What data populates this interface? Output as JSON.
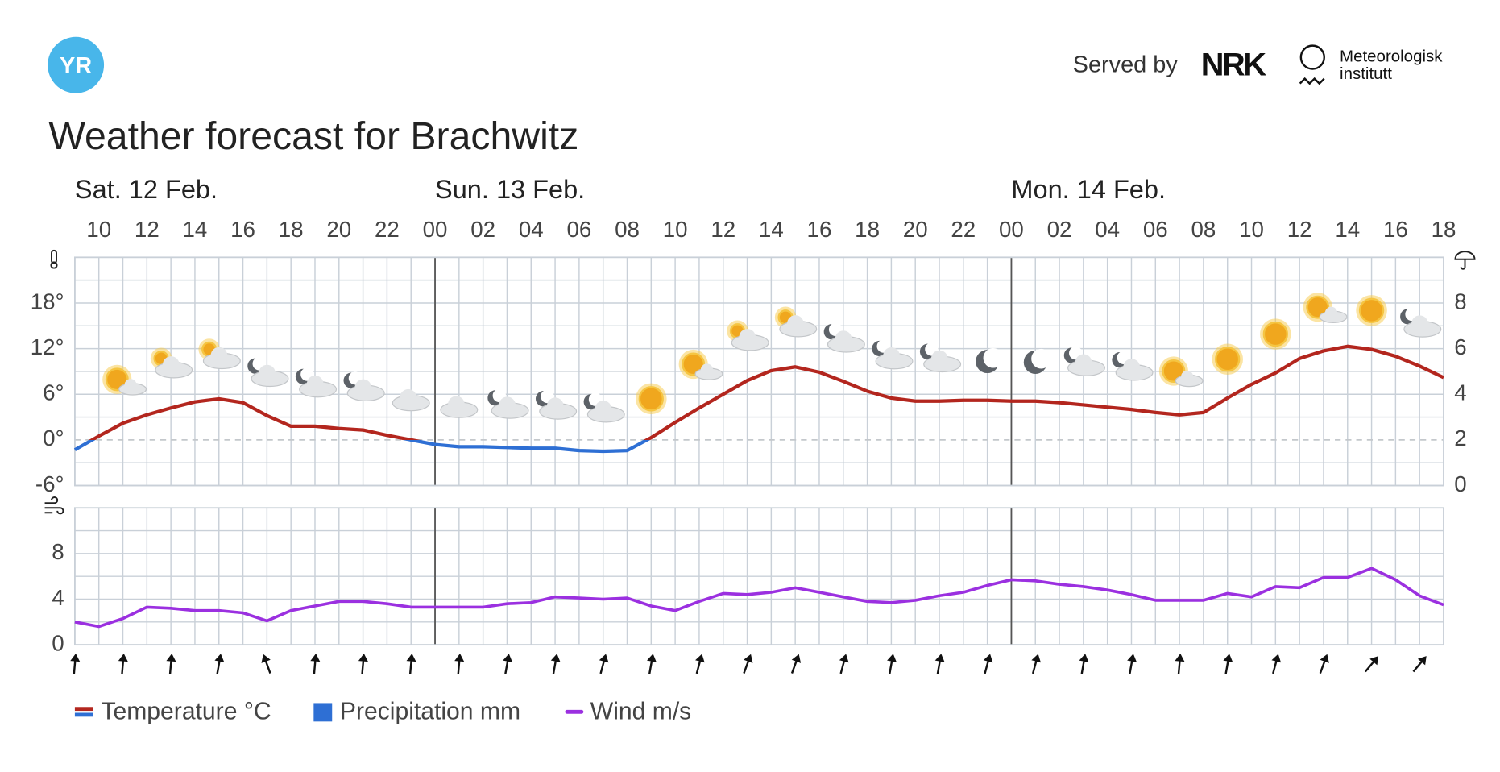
{
  "header": {
    "logo": "YR",
    "served_by": "Served by",
    "nrk": "NRK",
    "met_line1": "Meteorologisk",
    "met_line2": "institutt"
  },
  "title": "Weather forecast for Brachwitz",
  "days": [
    "Sat. 12 Feb.",
    "Sun. 13 Feb.",
    "Mon. 14 Feb."
  ],
  "chart_data": [
    {
      "type": "line",
      "categories": [
        null,
        "10",
        null,
        "12",
        null,
        "14",
        null,
        "16",
        null,
        "18",
        null,
        "20",
        null,
        "22",
        null,
        "00",
        null,
        "02",
        null,
        "04",
        null,
        "06",
        null,
        "08",
        null,
        "10",
        null,
        "12",
        null,
        "14",
        null,
        "16",
        null,
        "18",
        null,
        "20",
        null,
        "22",
        null,
        "00",
        null,
        "02",
        null,
        "04",
        null,
        "06",
        null,
        "08",
        null,
        "10",
        null,
        "12",
        null,
        "14",
        null,
        "16",
        null,
        "18"
      ],
      "ylim": [
        -6,
        24
      ],
      "yticks": [
        {
          "value": -6,
          "label": "-6°"
        },
        {
          "value": 0,
          "label": "0°"
        },
        {
          "value": 6,
          "label": "6°"
        },
        {
          "value": 12,
          "label": "12°"
        },
        {
          "value": 18,
          "label": "18°"
        }
      ],
      "y2lim": [
        0,
        10
      ],
      "y2ticks": [
        0,
        2,
        4,
        6,
        8
      ],
      "grid": true,
      "series": [
        {
          "name": "Temperature °C",
          "color": "#b3261e",
          "cold_color": "#2e6fd4",
          "values": [
            -1.3,
            0.5,
            2.2,
            3.3,
            4.2,
            5.0,
            5.4,
            4.9,
            3.2,
            1.8,
            1.8,
            1.5,
            1.3,
            0.6,
            0,
            -0.6,
            -0.9,
            -0.9,
            -1.0,
            -1.1,
            -1.1,
            -1.4,
            -1.5,
            -1.4,
            0.3,
            2.3,
            4.2,
            6.0,
            7.8,
            9.1,
            9.6,
            8.9,
            7.7,
            6.4,
            5.5,
            5.1,
            5.1,
            5.2,
            5.2,
            5.1,
            5.1,
            4.9,
            4.6,
            4.3,
            4.0,
            3.6,
            3.3,
            3.6,
            5.5,
            7.3,
            8.8,
            10.7,
            11.7,
            12.3,
            11.9,
            11.0,
            9.7,
            8.2
          ]
        },
        {
          "name": "Precipitation mm",
          "color": "#2e6fd4",
          "axis": "y2",
          "type": "bar",
          "values": [
            0,
            0,
            0,
            0,
            0,
            0,
            0,
            0,
            0,
            0,
            0,
            0,
            0,
            0,
            0,
            0,
            0,
            0,
            0,
            0,
            0,
            0,
            0,
            0,
            0,
            0,
            0,
            0,
            0,
            0,
            0,
            0,
            0,
            0,
            0,
            0,
            0,
            0,
            0,
            0,
            0,
            0,
            0,
            0,
            0,
            0,
            0,
            0,
            0,
            0,
            0,
            0,
            0,
            0,
            0,
            0,
            0,
            0
          ]
        }
      ]
    },
    {
      "type": "line",
      "ylim": [
        0,
        12
      ],
      "yticks": [
        0,
        4,
        8
      ],
      "grid": true,
      "series": [
        {
          "name": "Wind m/s",
          "color": "#9b30e0",
          "values": [
            2.0,
            1.6,
            2.3,
            3.3,
            3.2,
            3.0,
            3.0,
            2.8,
            2.1,
            3.0,
            3.4,
            3.8,
            3.8,
            3.6,
            3.3,
            3.3,
            3.3,
            3.3,
            3.6,
            3.7,
            4.2,
            4.1,
            4.0,
            4.1,
            3.4,
            3.0,
            3.8,
            4.5,
            4.4,
            4.6,
            5.0,
            4.6,
            4.2,
            3.8,
            3.7,
            3.9,
            4.3,
            4.6,
            5.2,
            5.7,
            5.6,
            5.3,
            5.1,
            4.8,
            4.4,
            3.9,
            3.9,
            3.9,
            4.5,
            4.2,
            5.1,
            5.0,
            5.9,
            5.9,
            6.7,
            5.7,
            4.3,
            3.5
          ]
        }
      ]
    }
  ]
}
